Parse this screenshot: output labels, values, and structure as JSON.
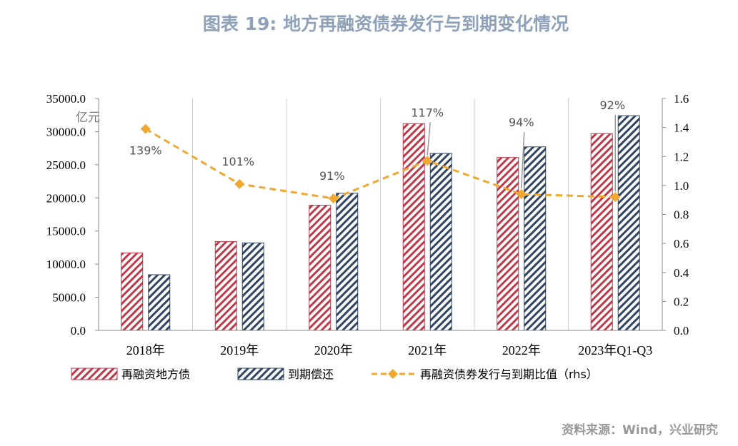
{
  "title": "图表 19: 地方再融资债券发行与到期变化情况",
  "source": "资料来源：Wind，兴业研究",
  "chart_data": {
    "type": "bar",
    "categories": [
      "2018年",
      "2019年",
      "2020年",
      "2021年",
      "2022年",
      "2023年Q1-Q3"
    ],
    "y_unit": "亿元",
    "ylim": [
      0,
      35000
    ],
    "y_ticks": [
      "0.0",
      "5000.0",
      "10000.0",
      "15000.0",
      "20000.0",
      "25000.0",
      "30000.0",
      "35000.0"
    ],
    "y2lim": [
      0,
      1.6
    ],
    "y2_ticks": [
      "0.0",
      "0.2",
      "0.4",
      "0.6",
      "0.8",
      "1.0",
      "1.2",
      "1.4",
      "1.6"
    ],
    "grid": "vertical",
    "legend_position": "bottom",
    "series": [
      {
        "name": "再融资地方债",
        "type": "bar",
        "axis": "left",
        "color": "#c0394b",
        "pattern": "diagonal-hatch",
        "values": [
          11700,
          13400,
          18900,
          31200,
          26100,
          29700
        ]
      },
      {
        "name": "到期偿还",
        "type": "bar",
        "axis": "left",
        "color": "#2f4563",
        "pattern": "diagonal-hatch",
        "values": [
          8400,
          13200,
          20700,
          26700,
          27700,
          32400
        ]
      },
      {
        "name": "再融资债券发行与到期比值（rhs）",
        "type": "line",
        "axis": "right",
        "color": "#f0a830",
        "style": "dashed",
        "values": [
          1.39,
          1.01,
          0.91,
          1.17,
          0.94,
          0.92
        ],
        "labels": [
          "139%",
          "101%",
          "91%",
          "117%",
          "94%",
          "92%"
        ]
      }
    ]
  }
}
